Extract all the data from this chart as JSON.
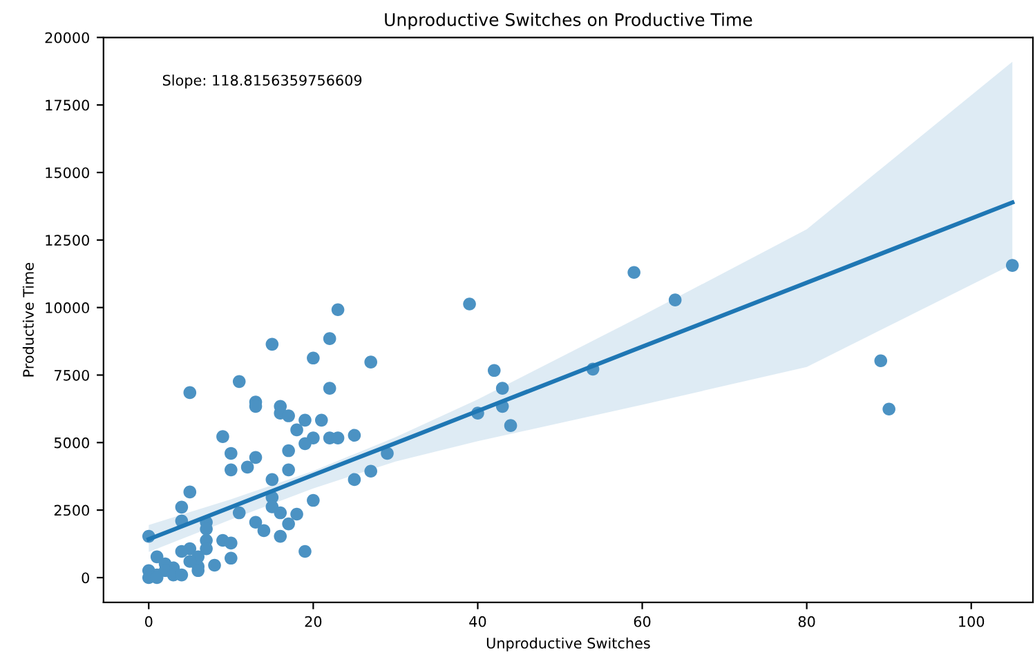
{
  "chart_data": {
    "type": "scatter",
    "title": "Unproductive Switches on Productive Time",
    "xlabel": "Unproductive Switches",
    "ylabel": "Productive Time",
    "annotations": [
      "Slope: 118.8156359756609"
    ],
    "xlim": [
      -5.5,
      107.5
    ],
    "ylim": [
      -920,
      20000
    ],
    "xticks": [
      0,
      20,
      40,
      60,
      80,
      100
    ],
    "yticks": [
      0,
      2500,
      5000,
      7500,
      10000,
      12500,
      15000,
      17500,
      20000
    ],
    "grid": false,
    "series": [
      {
        "color": "#4b92c3",
        "marker": "circle",
        "x": [
          23,
          22,
          15,
          20,
          27,
          11,
          5,
          22,
          13,
          13,
          16,
          16,
          17,
          19,
          21,
          18,
          20,
          19,
          22,
          23,
          25,
          9,
          10,
          13,
          17,
          10,
          12,
          17,
          29,
          27,
          25,
          15,
          5,
          15,
          15,
          20,
          4,
          4,
          11,
          16,
          18,
          17,
          7,
          7,
          13,
          14,
          16,
          0,
          19,
          9,
          10,
          10,
          7,
          7,
          5,
          4,
          1,
          8,
          6,
          6,
          6,
          2,
          3,
          0,
          0,
          1,
          2,
          3,
          4,
          5,
          1,
          39,
          59,
          42,
          43,
          43,
          40,
          44,
          54,
          64,
          105,
          89,
          90
        ],
        "values": [
          9920,
          8850,
          8640,
          8130,
          7980,
          7260,
          6850,
          7010,
          6500,
          6340,
          6340,
          6090,
          5990,
          5830,
          5830,
          5470,
          5170,
          4960,
          5170,
          5170,
          5270,
          5220,
          4600,
          4450,
          4700,
          3990,
          4090,
          3990,
          4600,
          3940,
          3630,
          3630,
          3170,
          2970,
          2620,
          2860,
          2610,
          2100,
          2400,
          2400,
          2350,
          1990,
          2050,
          1800,
          2050,
          1740,
          1530,
          1530,
          970,
          1380,
          1280,
          720,
          1380,
          1070,
          1070,
          970,
          770,
          460,
          770,
          410,
          260,
          510,
          360,
          260,
          0,
          100,
          260,
          100,
          100,
          600,
          0,
          10130,
          11300,
          7670,
          7010,
          6340,
          6090,
          5630,
          7720,
          10280,
          11560,
          8030,
          6240
        ]
      },
      {
        "type": "line",
        "color": "#1f77b4",
        "line_style": "solid",
        "x": [
          0,
          10,
          20,
          30,
          40,
          60,
          80,
          105
        ],
        "values": [
          1420,
          2610,
          3800,
          4980,
          6170,
          8550,
          10920,
          13890
        ],
        "lower": [
          950,
          2150,
          3300,
          4300,
          5050,
          6400,
          7800,
          11600
        ],
        "upper": [
          1950,
          2900,
          3950,
          5200,
          6600,
          9700,
          12900,
          19100
        ]
      }
    ]
  }
}
